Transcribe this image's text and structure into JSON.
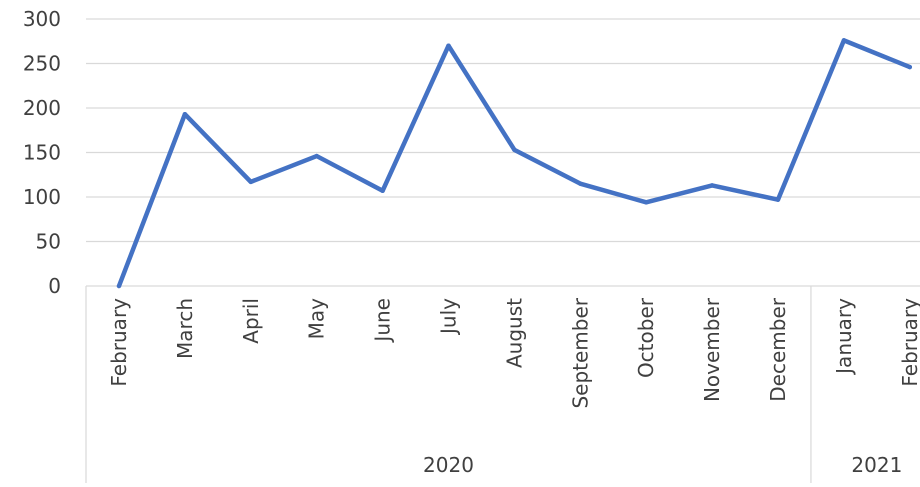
{
  "chart_data": {
    "type": "line",
    "title": "",
    "xlabel": "",
    "ylabel": "",
    "ylim": [
      0,
      300
    ],
    "yticks": [
      "0",
      "50",
      "100",
      "150",
      "200",
      "250",
      "300"
    ],
    "grid": true,
    "legend": "none",
    "line_color": "#4472C4",
    "grid_color": "#d9d9d9",
    "categories": [
      "February",
      "March",
      "April",
      "May",
      "June",
      "July",
      "August",
      "September",
      "October",
      "November",
      "December",
      "January",
      "February"
    ],
    "groups": [
      {
        "label": "2020",
        "start": 0,
        "end": 10
      },
      {
        "label": "2021",
        "start": 11,
        "end": 12
      }
    ],
    "series": [
      {
        "values": [
          0,
          193,
          117,
          146,
          107,
          270,
          153,
          115,
          94,
          113,
          97,
          276,
          246
        ]
      }
    ]
  }
}
